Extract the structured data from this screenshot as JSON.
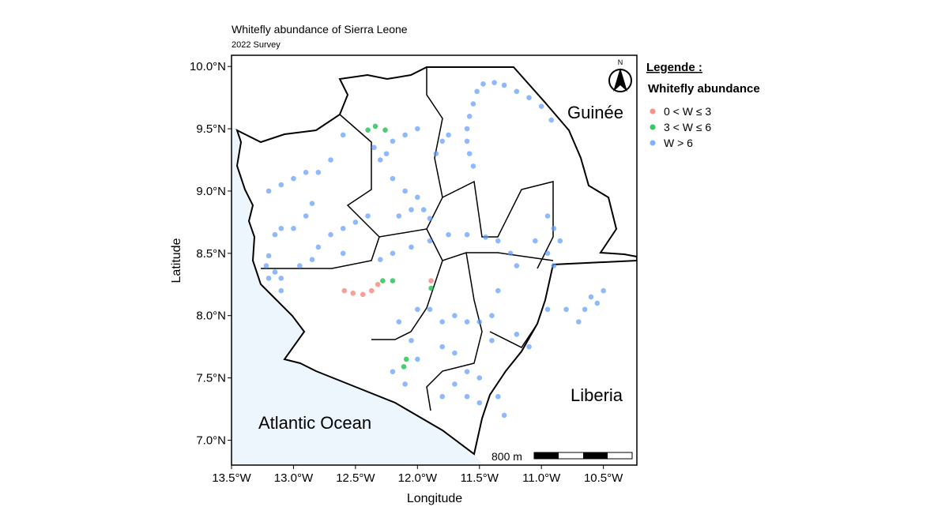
{
  "chart_data": {
    "type": "map",
    "title": "Whitefly abundance of Sierra Leone",
    "subtitle": "2022 Survey",
    "xlabel": "Longitude",
    "ylabel": "Latitude",
    "xlim": [
      -13.5,
      -10.23
    ],
    "ylim": [
      6.8,
      10.09
    ],
    "xticks": [
      {
        "value": -13.5,
        "label": "13.5°W"
      },
      {
        "value": -13.0,
        "label": "13.0°W"
      },
      {
        "value": -12.5,
        "label": "12.5°W"
      },
      {
        "value": -12.0,
        "label": "12.0°W"
      },
      {
        "value": -11.5,
        "label": "11.5°W"
      },
      {
        "value": -11.0,
        "label": "11.0°W"
      },
      {
        "value": -10.5,
        "label": "10.5°W"
      }
    ],
    "yticks": [
      {
        "value": 7.0,
        "label": "7.0°N"
      },
      {
        "value": 7.5,
        "label": "7.5°N"
      },
      {
        "value": 8.0,
        "label": "8.0°N"
      },
      {
        "value": 8.5,
        "label": "8.5°N"
      },
      {
        "value": 9.0,
        "label": "9.0°N"
      },
      {
        "value": 9.5,
        "label": "9.5°N"
      },
      {
        "value": 10.0,
        "label": "10.0°N"
      }
    ],
    "legend_heading": "Legende :",
    "legend_title": "Whitefly abundance",
    "places": [
      "Guinée",
      "Liberia",
      "Atlantic Ocean"
    ],
    "scale_label": "800 m",
    "north": "N",
    "series": [
      {
        "name": "0 < W ≤ 3",
        "color": "#F8766D",
        "points": [
          [
            -12.59,
            8.2
          ],
          [
            -12.52,
            8.18
          ],
          [
            -12.44,
            8.17
          ],
          [
            -12.37,
            8.2
          ],
          [
            -12.32,
            8.25
          ],
          [
            -11.89,
            8.28
          ]
        ]
      },
      {
        "name": "3 < W ≤ 6",
        "color": "#00BA38",
        "points": [
          [
            -12.4,
            9.49
          ],
          [
            -12.34,
            9.52
          ],
          [
            -12.26,
            9.49
          ],
          [
            -12.28,
            8.28
          ],
          [
            -12.2,
            8.28
          ],
          [
            -11.89,
            8.22
          ],
          [
            -12.09,
            7.65
          ],
          [
            -12.11,
            7.59
          ]
        ]
      },
      {
        "name": "W > 6",
        "color": "#619CFF",
        "points": [
          [
            -11.52,
            9.8
          ],
          [
            -11.47,
            9.86
          ],
          [
            -11.38,
            9.87
          ],
          [
            -11.3,
            9.85
          ],
          [
            -11.2,
            9.8
          ],
          [
            -11.1,
            9.75
          ],
          [
            -11.0,
            9.68
          ],
          [
            -10.92,
            9.57
          ],
          [
            -11.55,
            9.7
          ],
          [
            -11.58,
            9.6
          ],
          [
            -11.6,
            9.5
          ],
          [
            -11.6,
            9.4
          ],
          [
            -11.58,
            9.3
          ],
          [
            -11.55,
            9.2
          ],
          [
            -11.75,
            9.45
          ],
          [
            -11.8,
            9.4
          ],
          [
            -11.85,
            9.3
          ],
          [
            -12.0,
            9.5
          ],
          [
            -12.1,
            9.45
          ],
          [
            -12.2,
            9.4
          ],
          [
            -12.25,
            9.3
          ],
          [
            -12.3,
            9.25
          ],
          [
            -12.35,
            9.35
          ],
          [
            -12.2,
            9.1
          ],
          [
            -12.1,
            9.0
          ],
          [
            -12.0,
            8.95
          ],
          [
            -11.95,
            8.85
          ],
          [
            -11.9,
            8.78
          ],
          [
            -12.05,
            8.85
          ],
          [
            -12.15,
            8.8
          ],
          [
            -12.6,
            9.45
          ],
          [
            -12.7,
            9.25
          ],
          [
            -12.8,
            9.15
          ],
          [
            -12.9,
            9.15
          ],
          [
            -13.0,
            9.1
          ],
          [
            -13.1,
            9.05
          ],
          [
            -13.2,
            9.0
          ],
          [
            -12.85,
            8.9
          ],
          [
            -12.9,
            8.8
          ],
          [
            -13.0,
            8.7
          ],
          [
            -13.1,
            8.7
          ],
          [
            -13.15,
            8.65
          ],
          [
            -12.5,
            8.75
          ],
          [
            -12.4,
            8.8
          ],
          [
            -12.6,
            8.7
          ],
          [
            -12.7,
            8.65
          ],
          [
            -12.8,
            8.55
          ],
          [
            -12.85,
            8.45
          ],
          [
            -12.6,
            8.5
          ],
          [
            -13.2,
            8.48
          ],
          [
            -13.22,
            8.4
          ],
          [
            -13.15,
            8.35
          ],
          [
            -13.1,
            8.3
          ],
          [
            -13.2,
            8.3
          ],
          [
            -13.1,
            8.2
          ],
          [
            -12.95,
            8.4
          ],
          [
            -11.75,
            8.65
          ],
          [
            -11.6,
            8.65
          ],
          [
            -11.45,
            8.63
          ],
          [
            -11.35,
            8.6
          ],
          [
            -11.25,
            8.5
          ],
          [
            -11.2,
            8.4
          ],
          [
            -11.9,
            8.6
          ],
          [
            -12.05,
            8.55
          ],
          [
            -12.2,
            8.5
          ],
          [
            -12.3,
            8.45
          ],
          [
            -10.95,
            8.8
          ],
          [
            -10.9,
            8.7
          ],
          [
            -10.85,
            8.6
          ],
          [
            -10.95,
            8.5
          ],
          [
            -11.05,
            8.6
          ],
          [
            -10.9,
            8.4
          ],
          [
            -10.6,
            8.15
          ],
          [
            -10.65,
            8.05
          ],
          [
            -10.7,
            7.95
          ],
          [
            -10.8,
            8.05
          ],
          [
            -10.95,
            8.05
          ],
          [
            -10.5,
            8.2
          ],
          [
            -10.55,
            8.1
          ],
          [
            -11.9,
            8.05
          ],
          [
            -11.8,
            7.95
          ],
          [
            -11.7,
            8.0
          ],
          [
            -11.6,
            7.95
          ],
          [
            -11.5,
            7.95
          ],
          [
            -11.4,
            8.0
          ],
          [
            -11.35,
            8.2
          ],
          [
            -11.4,
            7.8
          ],
          [
            -11.2,
            7.85
          ],
          [
            -11.1,
            7.75
          ],
          [
            -11.8,
            7.75
          ],
          [
            -11.7,
            7.7
          ],
          [
            -11.6,
            7.55
          ],
          [
            -11.5,
            7.5
          ],
          [
            -11.7,
            7.45
          ],
          [
            -11.6,
            7.35
          ],
          [
            -11.5,
            7.3
          ],
          [
            -11.35,
            7.35
          ],
          [
            -11.3,
            7.2
          ],
          [
            -11.8,
            7.35
          ],
          [
            -12.1,
            7.45
          ],
          [
            -12.2,
            7.55
          ],
          [
            -12.0,
            7.65
          ],
          [
            -12.05,
            7.8
          ],
          [
            -12.15,
            7.95
          ],
          [
            -12.0,
            8.05
          ]
        ]
      }
    ]
  }
}
